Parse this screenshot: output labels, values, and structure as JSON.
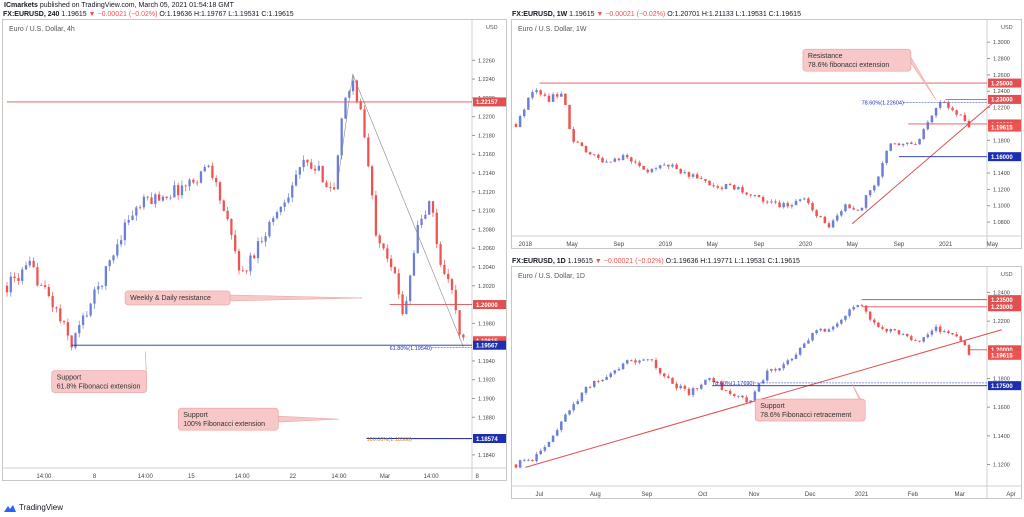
{
  "header": {
    "brand": "ICmarkets",
    "published": "published on TradingView.com, March 05, 2021 01:54:18 GMT"
  },
  "footer": {
    "label": "TradingView"
  },
  "colors": {
    "up": "#6b7fd7",
    "down": "#ef5350",
    "resistance": "#e05050",
    "support_blue": "#1c2fb0",
    "callout_bg": "#f8c7c7",
    "fib_gold": "#b8860b"
  },
  "panels": [
    {
      "id": "h4",
      "header": {
        "symbol": "FX:EURUSD, 240",
        "price": "1.19615",
        "change": "−0.00021 (−0.02%)",
        "o": "1.19636",
        "h": "1.19767",
        "l": "1.19531",
        "c": "1.19615"
      },
      "watermark": "Euro / U.S. Dollar, 4h",
      "currency": "USD",
      "chart_data": {
        "type": "candlestick",
        "title": "Euro / U.S. Dollar, 4h",
        "ylim": [
          1.1826,
          1.2288
        ],
        "xlim": [
          0,
          100
        ],
        "y_ticks": [
          1.226,
          1.224,
          1.222,
          1.22,
          1.218,
          1.216,
          1.214,
          1.212,
          1.21,
          1.208,
          1.206,
          1.204,
          1.202,
          1.198,
          1.194,
          1.192,
          1.19,
          1.188,
          1.184
        ],
        "x_ticks": [
          {
            "x": 8,
            "label": "14:00"
          },
          {
            "x": 19,
            "label": "8"
          },
          {
            "x": 30,
            "label": "14:00"
          },
          {
            "x": 40,
            "label": "15"
          },
          {
            "x": 51,
            "label": "14:00"
          },
          {
            "x": 62,
            "label": "22"
          },
          {
            "x": 72,
            "label": "14:00"
          },
          {
            "x": 82,
            "label": "Mar"
          },
          {
            "x": 92,
            "label": "14:00"
          },
          {
            "x": 102,
            "label": "8"
          }
        ],
        "path": [
          [
            0,
            1.202
          ],
          [
            5,
            1.204
          ],
          [
            10,
            1.2
          ],
          [
            14,
            1.1958
          ],
          [
            17,
            1.199
          ],
          [
            21,
            1.203
          ],
          [
            26,
            1.209
          ],
          [
            30,
            1.211
          ],
          [
            36,
            1.212
          ],
          [
            40,
            1.213
          ],
          [
            44,
            1.215
          ],
          [
            47,
            1.21
          ],
          [
            51,
            1.203
          ],
          [
            55,
            1.207
          ],
          [
            60,
            1.211
          ],
          [
            64,
            1.215
          ],
          [
            68,
            1.214
          ],
          [
            71,
            1.212
          ],
          [
            73,
            1.221
          ],
          [
            75,
            1.224
          ],
          [
            77,
            1.22
          ],
          [
            80,
            1.208
          ],
          [
            83,
            1.205
          ],
          [
            86,
            1.199
          ],
          [
            89,
            1.208
          ],
          [
            92,
            1.211
          ],
          [
            94,
            1.204
          ],
          [
            96,
            1.203
          ],
          [
            98,
            1.197
          ],
          [
            99,
            1.1961
          ]
        ],
        "hlines": [
          {
            "value": 1.22157,
            "label": "1.22157",
            "color": "#e05050",
            "from": 0
          },
          {
            "value": 1.2,
            "label": "1.20000",
            "color": "#e05050",
            "from": 83
          },
          {
            "value": 1.19615,
            "label": "1.19615",
            "color": "#ef5350",
            "from": 100
          },
          {
            "value": 1.19567,
            "label": "1.19567",
            "color": "#1c2fb0",
            "from": 14
          },
          {
            "value": 1.18574,
            "label": "1.18574",
            "color": "#1c2fb0",
            "from": 78
          }
        ],
        "fib_labels": [
          {
            "value": 1.1954,
            "label": "61.80%(1.19540)",
            "x": 83,
            "color": "#1c2fb0"
          },
          {
            "value": 1.18568,
            "label": "100.00%(1.18568)",
            "x": 78,
            "color": "#b8860b"
          }
        ],
        "callouts": [
          {
            "title": "Weekly & Daily resistance",
            "subtitle": "",
            "x": 37,
            "value": 1.2007,
            "w": 105,
            "arrow": [
              77,
              1.2007
            ]
          },
          {
            "title": "Support",
            "subtitle": "61.8% Fibonacci extension",
            "x": 20,
            "value": 1.1918,
            "w": 95,
            "arrow": [
              30,
              1.195
            ]
          },
          {
            "title": "Support",
            "subtitle": "100% Fibonacci extension",
            "x": 48,
            "value": 1.1878,
            "w": 100,
            "arrow": [
              72,
              1.1878
            ]
          }
        ]
      }
    },
    {
      "id": "w1",
      "header": {
        "symbol": "FX:EURUSD, 1W",
        "price": "1.19615",
        "change": "−0.00021 (−0.02%)",
        "o": "1.20701",
        "h": "1.21133",
        "l": "1.19531",
        "c": "1.19615"
      },
      "watermark": "Euro / U.S. Dollar, 1W",
      "currency": "USD",
      "chart_data": {
        "type": "candlestick",
        "title": "Euro / U.S. Dollar, 1W",
        "ylim": [
          1.063,
          1.31
        ],
        "xlim": [
          0,
          100
        ],
        "y_ticks": [
          1.3,
          1.28,
          1.26,
          1.24,
          1.22,
          1.18,
          1.14,
          1.12,
          1.1,
          1.08
        ],
        "x_ticks": [
          {
            "x": 2,
            "label": "2018"
          },
          {
            "x": 12,
            "label": "May"
          },
          {
            "x": 22,
            "label": "Sep"
          },
          {
            "x": 32,
            "label": "2019"
          },
          {
            "x": 42,
            "label": "May"
          },
          {
            "x": 52,
            "label": "Sep"
          },
          {
            "x": 62,
            "label": "2020"
          },
          {
            "x": 72,
            "label": "May"
          },
          {
            "x": 82,
            "label": "Sep"
          },
          {
            "x": 92,
            "label": "2021"
          },
          {
            "x": 102,
            "label": "May"
          }
        ],
        "path": [
          [
            0,
            1.2
          ],
          [
            4,
            1.245
          ],
          [
            7,
            1.23
          ],
          [
            10,
            1.24
          ],
          [
            12,
            1.18
          ],
          [
            15,
            1.165
          ],
          [
            19,
            1.155
          ],
          [
            23,
            1.16
          ],
          [
            28,
            1.142
          ],
          [
            33,
            1.15
          ],
          [
            38,
            1.135
          ],
          [
            43,
            1.125
          ],
          [
            48,
            1.12
          ],
          [
            53,
            1.105
          ],
          [
            58,
            1.1
          ],
          [
            62,
            1.11
          ],
          [
            65,
            1.085
          ],
          [
            67,
            1.07
          ],
          [
            70,
            1.1
          ],
          [
            73,
            1.09
          ],
          [
            77,
            1.13
          ],
          [
            80,
            1.175
          ],
          [
            84,
            1.18
          ],
          [
            86,
            1.175
          ],
          [
            88,
            1.2
          ],
          [
            91,
            1.225
          ],
          [
            93,
            1.22
          ],
          [
            95,
            1.21
          ],
          [
            97,
            1.1961
          ]
        ],
        "hlines": [
          {
            "value": 1.25,
            "label": "1.25000",
            "color": "#e05050",
            "from": 5
          },
          {
            "value": 1.23,
            "label": "1.23000",
            "color": "#e05050",
            "from": 92
          },
          {
            "value": 1.2,
            "label": "1.20000",
            "color": "#e05050",
            "from": 84
          },
          {
            "value": 1.19615,
            "label": "1.19615",
            "color": "#ef5350",
            "from": 100
          },
          {
            "value": 1.16,
            "label": "1.16000",
            "color": "#1c2fb0",
            "from": 82
          }
        ],
        "fib_labels": [
          {
            "value": 1.22604,
            "label": "78.60%(1.22604)",
            "x": 74,
            "color": "#1c2fb0"
          }
        ],
        "trendline": [
          [
            72,
            1.078
          ],
          [
            104,
            1.235
          ]
        ],
        "callouts": [
          {
            "title": "Resistance",
            "subtitle": "78.6% fibonacci extension",
            "x": 73,
            "value": 1.278,
            "w": 108,
            "arrow": [
              90,
              1.229
            ]
          }
        ]
      }
    },
    {
      "id": "d1",
      "header": {
        "symbol": "FX:EURUSD, 1D",
        "price": "1.19615",
        "change": "−0.00021 (−0.02%)",
        "o": "1.19636",
        "h": "1.19771",
        "l": "1.19531",
        "c": "1.19615"
      },
      "watermark": "Euro / U.S. Dollar, 1D",
      "currency": "USD",
      "chart_data": {
        "type": "candlestick",
        "title": "Euro / U.S. Dollar, 1D",
        "ylim": [
          1.105,
          1.248
        ],
        "xlim": [
          0,
          100
        ],
        "y_ticks": [
          1.24,
          1.22,
          1.18,
          1.16,
          1.14,
          1.12
        ],
        "x_ticks": [
          {
            "x": 5,
            "label": "Jul"
          },
          {
            "x": 17,
            "label": "Aug"
          },
          {
            "x": 28,
            "label": "Sep"
          },
          {
            "x": 40,
            "label": "Oct"
          },
          {
            "x": 51,
            "label": "Nov"
          },
          {
            "x": 63,
            "label": "Dec"
          },
          {
            "x": 74,
            "label": "2021"
          },
          {
            "x": 85,
            "label": "Feb"
          },
          {
            "x": 95,
            "label": "Mar"
          },
          {
            "x": 106,
            "label": "Apr"
          }
        ],
        "path": [
          [
            0,
            1.12
          ],
          [
            4,
            1.125
          ],
          [
            9,
            1.145
          ],
          [
            14,
            1.17
          ],
          [
            18,
            1.18
          ],
          [
            23,
            1.19
          ],
          [
            28,
            1.195
          ],
          [
            32,
            1.18
          ],
          [
            37,
            1.17
          ],
          [
            41,
            1.18
          ],
          [
            46,
            1.17
          ],
          [
            50,
            1.164
          ],
          [
            54,
            1.185
          ],
          [
            58,
            1.19
          ],
          [
            63,
            1.21
          ],
          [
            67,
            1.215
          ],
          [
            71,
            1.225
          ],
          [
            74,
            1.233
          ],
          [
            76,
            1.22
          ],
          [
            79,
            1.215
          ],
          [
            83,
            1.21
          ],
          [
            86,
            1.205
          ],
          [
            89,
            1.215
          ],
          [
            92,
            1.212
          ],
          [
            95,
            1.21
          ],
          [
            97,
            1.1961
          ]
        ],
        "hlines": [
          {
            "value": 1.235,
            "label": "1.23500",
            "color": "#e05050",
            "from": 74
          },
          {
            "value": 1.23,
            "label": "1.23000",
            "color": "#e05050",
            "from": 74
          },
          {
            "value": 1.2,
            "label": "1.20000",
            "color": "#e05050",
            "from": 97
          },
          {
            "value": 1.19615,
            "label": "1.19615",
            "color": "#ef5350",
            "from": 100
          },
          {
            "value": 1.175,
            "label": "1.17500",
            "color": "#1c2fb0",
            "from": 42
          }
        ],
        "fib_labels": [
          {
            "value": 1.1769,
            "label": "78.60%(1.17690)",
            "x": 42,
            "color": "#1c2fb0"
          }
        ],
        "trendline": [
          [
            2,
            1.118
          ],
          [
            104,
            1.214
          ]
        ],
        "callouts": [
          {
            "title": "Support",
            "subtitle": "78.6% Fibonacci retracement",
            "x": 63,
            "value": 1.158,
            "w": 110,
            "arrow": [
              72,
              1.176
            ]
          }
        ]
      }
    }
  ]
}
